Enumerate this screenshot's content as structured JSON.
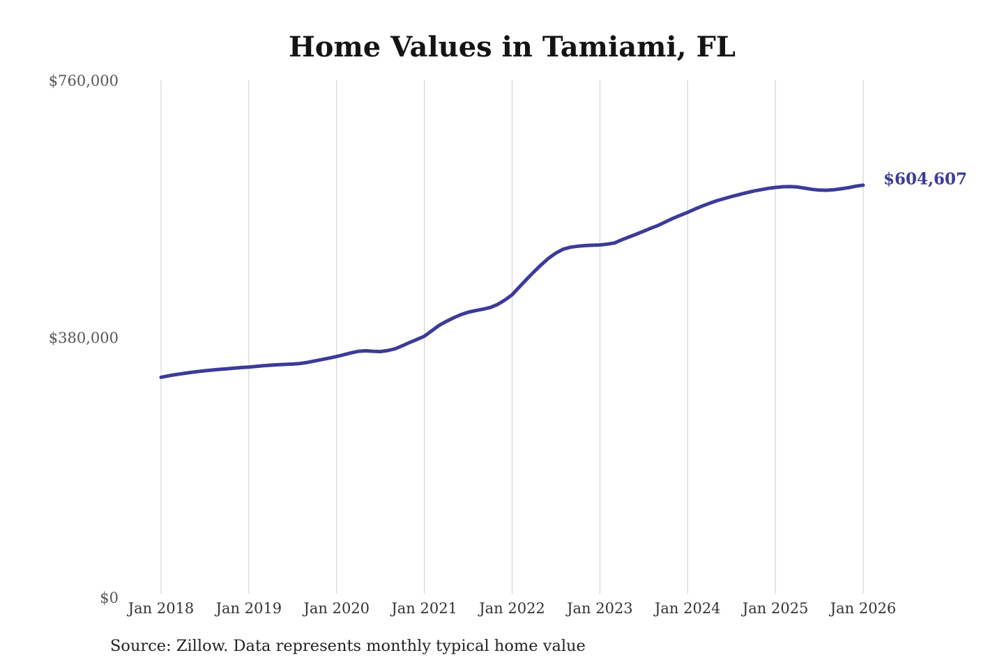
{
  "chart_data": {
    "type": "line",
    "title": "Home Values in Tamiami, FL",
    "frequency": "monthly",
    "x_start": "Jan 2018",
    "x_end": "Jan 2026",
    "values": [
      320300,
      322500,
      324300,
      325900,
      327400,
      328800,
      330000,
      331000,
      332000,
      332900,
      333800,
      334700,
      335500,
      336500,
      337400,
      338200,
      338900,
      339400,
      339900,
      340700,
      342300,
      344500,
      346600,
      348800,
      351000,
      353700,
      356500,
      358800,
      359500,
      358800,
      358300,
      359900,
      362500,
      367000,
      371900,
      376300,
      381000,
      389000,
      397000,
      403000,
      408400,
      413000,
      416600,
      419000,
      421000,
      423500,
      428000,
      434500,
      442400,
      454000,
      465500,
      476500,
      487000,
      496500,
      504200,
      509900,
      512800,
      514300,
      515200,
      515700,
      516100,
      517400,
      519000,
      523800,
      528000,
      532100,
      536500,
      541100,
      545200,
      550400,
      555500,
      560000,
      564400,
      569200,
      573700,
      577800,
      581600,
      584700,
      587800,
      590600,
      593300,
      595800,
      597800,
      599900,
      601200,
      602200,
      602500,
      601900,
      600200,
      598400,
      597300,
      597100,
      597800,
      599200,
      600900,
      603000,
      604607
    ],
    "end_label": "$604,607",
    "xticks": [
      "Jan 2018",
      "Jan 2019",
      "Jan 2020",
      "Jan 2021",
      "Jan 2022",
      "Jan 2023",
      "Jan 2024",
      "Jan 2025",
      "Jan 2026"
    ],
    "yticks": [
      {
        "value": 0,
        "label": "$0"
      },
      {
        "value": 380000,
        "label": "$380,000"
      },
      {
        "value": 760000,
        "label": "$760,000"
      }
    ],
    "ylim": [
      0,
      760000
    ],
    "line_color": "#3b3b98",
    "grid_color": "#cccccc",
    "grid": "vertical-only"
  },
  "footer": {
    "source_note": "Source: Zillow. Data represents monthly typical home value"
  }
}
